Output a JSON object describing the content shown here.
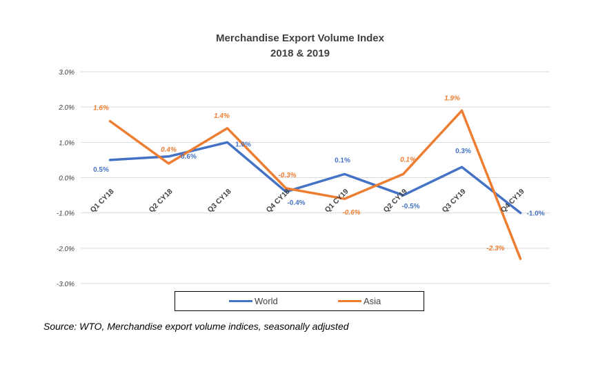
{
  "title_line1": "Merchandise Export Volume Index",
  "title_line2": "2018 & 2019",
  "source": "Source: WTO, Merchandise export volume indices, seasonally adjusted",
  "chart_data": {
    "type": "line",
    "title": "Merchandise Export Volume Index 2018 & 2019",
    "categories": [
      "Q1 CY18",
      "Q2 CY18",
      "Q3 CY18",
      "Q4 CY18",
      "Q1 CY19",
      "Q2 CY19",
      "Q3 CY19",
      "Q4 CY19"
    ],
    "y_ticks": [
      "3.0%",
      "2.0%",
      "1.0%",
      "0.0%",
      "-1.0%",
      "-2.0%",
      "-3.0%"
    ],
    "ylim": [
      -3.0,
      3.0
    ],
    "grid": true,
    "legend_position": "bottom",
    "series": [
      {
        "name": "World",
        "color": "#4472C4",
        "values": [
          0.5,
          0.6,
          1.0,
          -0.4,
          0.1,
          -0.5,
          0.3,
          -1.0
        ],
        "labels": [
          "0.5%",
          "0.6%",
          "1.0%",
          "-0.4%",
          "0.1%",
          "-0.5%",
          "0.3%",
          "-1.0%"
        ]
      },
      {
        "name": "Asia",
        "color": "#ED7D31",
        "values": [
          1.6,
          0.4,
          1.4,
          -0.3,
          -0.6,
          0.1,
          1.9,
          -2.3
        ],
        "labels": [
          "1.6%",
          "0.4%",
          "1.4%",
          "-0.3%",
          "-0.6%",
          "0.1%",
          "1.9%",
          "-2.3%"
        ]
      }
    ]
  }
}
